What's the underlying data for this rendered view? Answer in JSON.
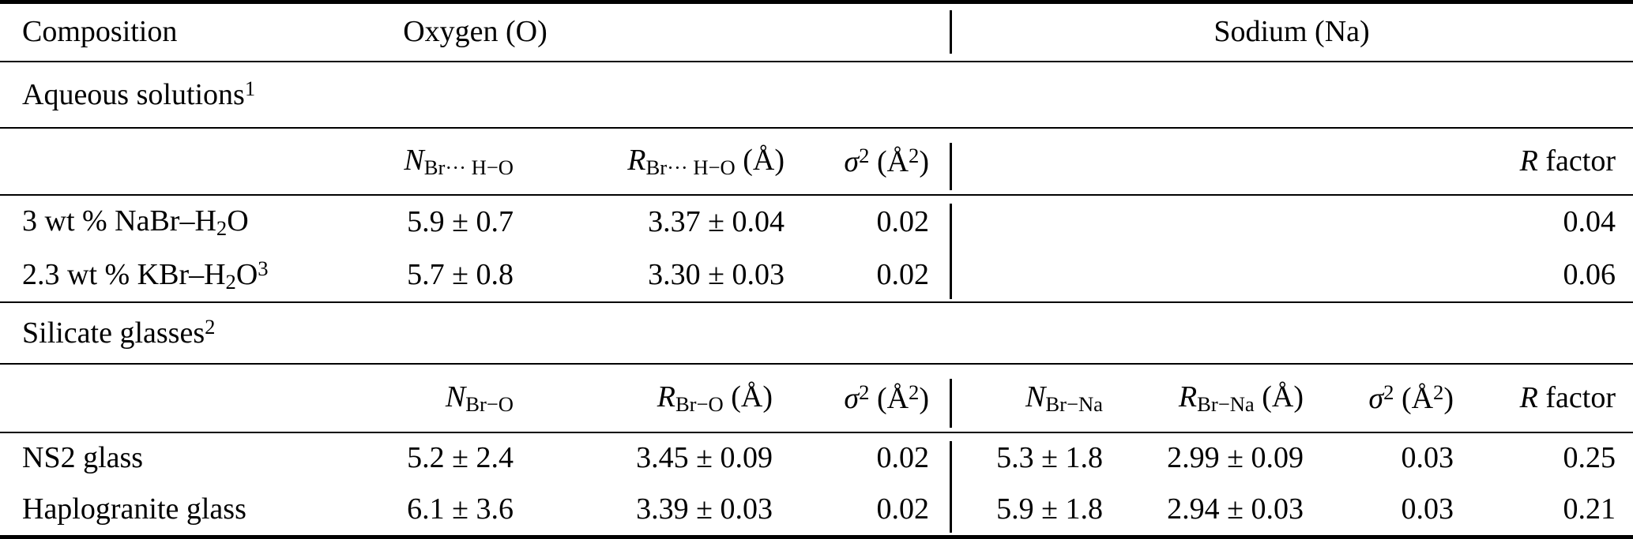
{
  "header": {
    "composition": "Composition",
    "oxygen": "Oxygen (O)",
    "sodium": "Sodium (Na)"
  },
  "aqueous": {
    "title": [
      {
        "t": "Aqueous solutions"
      },
      {
        "t": "1",
        "s": "sup"
      }
    ],
    "columns": {
      "n": [
        {
          "t": "N",
          "s": "i"
        },
        {
          "t": "Br··· H−O",
          "s": "sub"
        }
      ],
      "r": [
        {
          "t": "R",
          "s": "i"
        },
        {
          "t": "Br··· H−O",
          "s": "sub"
        },
        {
          "t": " (Å)"
        }
      ],
      "sigma": [
        {
          "t": "σ",
          "s": "i"
        },
        {
          "t": "2",
          "s": "sup"
        },
        {
          "t": " (Å"
        },
        {
          "t": "2",
          "s": "sup"
        },
        {
          "t": ")"
        }
      ],
      "r_factor": [
        {
          "t": "R",
          "s": "i"
        },
        {
          "t": " factor"
        }
      ]
    },
    "rows": [
      {
        "name": [
          {
            "t": "3 wt % NaBr–H"
          },
          {
            "t": "2",
            "s": "sub"
          },
          {
            "t": "O"
          }
        ],
        "n": "5.9 ± 0.7",
        "r": "3.37 ± 0.04",
        "sigma": "0.02",
        "r_factor": "0.04"
      },
      {
        "name": [
          {
            "t": "2.3 wt % KBr–H"
          },
          {
            "t": "2",
            "s": "sub"
          },
          {
            "t": "O"
          },
          {
            "t": "3",
            "s": "sup"
          }
        ],
        "n": "5.7 ± 0.8",
        "r": "3.30 ± 0.03",
        "sigma": "0.02",
        "r_factor": "0.06"
      }
    ]
  },
  "silicate": {
    "title": [
      {
        "t": "Silicate glasses"
      },
      {
        "t": "2",
        "s": "sup"
      }
    ],
    "columns": {
      "n_o": [
        {
          "t": "N",
          "s": "i"
        },
        {
          "t": "Br−O",
          "s": "sub"
        }
      ],
      "r_o": [
        {
          "t": "R",
          "s": "i"
        },
        {
          "t": "Br−O",
          "s": "sub"
        },
        {
          "t": " (Å)"
        }
      ],
      "sigma_o": [
        {
          "t": "σ",
          "s": "i"
        },
        {
          "t": "2",
          "s": "sup"
        },
        {
          "t": " (Å"
        },
        {
          "t": "2",
          "s": "sup"
        },
        {
          "t": ")"
        }
      ],
      "n_na": [
        {
          "t": "N",
          "s": "i"
        },
        {
          "t": "Br−Na",
          "s": "sub"
        }
      ],
      "r_na": [
        {
          "t": "R",
          "s": "i"
        },
        {
          "t": "Br−Na",
          "s": "sub"
        },
        {
          "t": " (Å)"
        }
      ],
      "sigma_na": [
        {
          "t": "σ",
          "s": "i"
        },
        {
          "t": "2",
          "s": "sup"
        },
        {
          "t": " (Å"
        },
        {
          "t": "2",
          "s": "sup"
        },
        {
          "t": ")"
        }
      ],
      "r_factor": [
        {
          "t": "R",
          "s": "i"
        },
        {
          "t": " factor"
        }
      ]
    },
    "rows": [
      {
        "name": [
          {
            "t": "NS2 glass"
          }
        ],
        "n_o": "5.2 ± 2.4",
        "r_o": "3.45 ± 0.09",
        "sigma_o": "0.02",
        "n_na": "5.3 ± 1.8",
        "r_na": "2.99 ± 0.09",
        "sigma_na": "0.03",
        "r_factor": "0.25"
      },
      {
        "name": [
          {
            "t": "Haplogranite glass"
          }
        ],
        "n_o": "6.1 ± 3.6",
        "r_o": "3.39 ± 0.03",
        "sigma_o": "0.02",
        "n_na": "5.9 ± 1.8",
        "r_na": "2.94 ± 0.03",
        "sigma_na": "0.03",
        "r_factor": "0.21"
      }
    ]
  }
}
